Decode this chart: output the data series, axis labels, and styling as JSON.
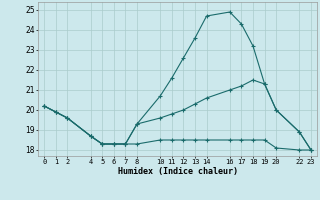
{
  "xlabel": "Humidex (Indice chaleur)",
  "bg_color": "#cce8ec",
  "grid_color": "#aacccc",
  "line_color": "#1a6b6b",
  "xlim": [
    -0.5,
    23.5
  ],
  "ylim": [
    17.7,
    25.4
  ],
  "xtick_positions": [
    0,
    1,
    2,
    4,
    5,
    6,
    7,
    8,
    10,
    11,
    12,
    13,
    14,
    16,
    17,
    18,
    19,
    20,
    22,
    23
  ],
  "xtick_labels": [
    "0",
    "1",
    "2",
    "4",
    "5",
    "6",
    "7",
    "8",
    "10",
    "11",
    "12",
    "13",
    "14",
    "16",
    "17",
    "18",
    "19",
    "20",
    "22",
    "23"
  ],
  "ytick_positions": [
    18,
    19,
    20,
    21,
    22,
    23,
    24,
    25
  ],
  "ytick_labels": [
    "18",
    "19",
    "20",
    "21",
    "22",
    "23",
    "24",
    "25"
  ],
  "line1_x": [
    0,
    1,
    2,
    4,
    5,
    6,
    7,
    8,
    10,
    11,
    12,
    13,
    14,
    16,
    17,
    18,
    19,
    20,
    22,
    23
  ],
  "line1_y": [
    20.2,
    19.9,
    19.6,
    18.7,
    18.3,
    18.3,
    18.3,
    18.3,
    18.5,
    18.5,
    18.5,
    18.5,
    18.5,
    18.5,
    18.5,
    18.5,
    18.5,
    18.1,
    18.0,
    18.0
  ],
  "line2_x": [
    0,
    1,
    2,
    4,
    5,
    6,
    7,
    8,
    10,
    11,
    12,
    13,
    14,
    16,
    17,
    18,
    19,
    20,
    22,
    23
  ],
  "line2_y": [
    20.2,
    19.9,
    19.6,
    18.7,
    18.3,
    18.3,
    18.3,
    19.3,
    20.7,
    21.6,
    22.6,
    23.6,
    24.7,
    24.9,
    24.3,
    23.2,
    21.3,
    20.0,
    18.9,
    18.0
  ],
  "line3_x": [
    0,
    1,
    2,
    4,
    5,
    6,
    7,
    8,
    10,
    11,
    12,
    13,
    14,
    16,
    17,
    18,
    19,
    20,
    22,
    23
  ],
  "line3_y": [
    20.2,
    19.9,
    19.6,
    18.7,
    18.3,
    18.3,
    18.3,
    19.3,
    19.6,
    19.8,
    20.0,
    20.3,
    20.6,
    21.0,
    21.2,
    21.5,
    21.3,
    20.0,
    18.9,
    18.0
  ]
}
